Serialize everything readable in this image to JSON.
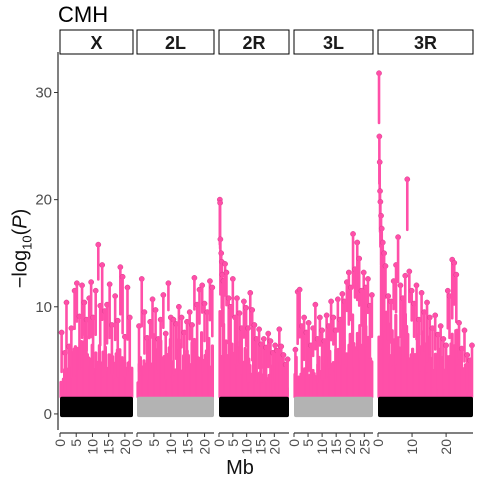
{
  "title": "CMH",
  "ylabel_text": "-log10(P)",
  "xlabel": "Mb",
  "colors": {
    "significant": "#FF4FA8",
    "significant_outline": "#D83A8C",
    "background_odd": "#000000",
    "background_even": "#B3B3B3",
    "panel_border": "#000000"
  },
  "chart_data": {
    "type": "scatter",
    "title": "CMH",
    "xlabel": "Mb",
    "ylabel": "-log10(P)",
    "ylim": [
      -1.5,
      33.5
    ],
    "y_ticks": [
      0,
      10,
      20,
      30
    ],
    "grid": false,
    "panels": [
      {
        "name": "X",
        "xlim": [
          0,
          22.5
        ],
        "x_ticks": [
          0,
          5,
          10,
          15,
          20
        ],
        "background_color": "black",
        "points": [
          [
            0.5,
            7.6
          ],
          [
            1.5,
            5.7
          ],
          [
            2.0,
            10.4
          ],
          [
            2.8,
            6.3
          ],
          [
            3.5,
            8.0
          ],
          [
            4.5,
            11.5
          ],
          [
            5.2,
            12.2
          ],
          [
            6.0,
            9.1
          ],
          [
            6.8,
            12.0
          ],
          [
            7.5,
            10.4
          ],
          [
            8.2,
            8.8
          ],
          [
            9.0,
            10.8
          ],
          [
            9.6,
            12.3
          ],
          [
            10.2,
            9.0
          ],
          [
            11.0,
            11.5
          ],
          [
            11.8,
            15.8
          ],
          [
            12.4,
            10.1
          ],
          [
            13.0,
            13.9
          ],
          [
            13.8,
            9.6
          ],
          [
            14.5,
            10.2
          ],
          [
            15.3,
            12.1
          ],
          [
            16.0,
            8.3
          ],
          [
            17.0,
            11.0
          ],
          [
            17.8,
            8.7
          ],
          [
            18.6,
            13.7
          ],
          [
            19.3,
            12.8
          ],
          [
            20.0,
            7.2
          ],
          [
            20.8,
            11.8
          ],
          [
            21.5,
            9.0
          ]
        ],
        "peaks": [
          [
            0.0,
            6.0
          ],
          [
            1.0,
            3.8
          ],
          [
            2.0,
            6.5
          ],
          [
            3.0,
            4.5
          ],
          [
            4.0,
            7.5
          ],
          [
            5.0,
            6.0
          ],
          [
            6.0,
            8.5
          ],
          [
            7.0,
            5.8
          ],
          [
            8.0,
            9.0
          ],
          [
            9.0,
            6.5
          ],
          [
            10.0,
            7.8
          ],
          [
            11.0,
            6.0
          ],
          [
            12.0,
            9.5
          ],
          [
            13.0,
            5.5
          ],
          [
            14.0,
            7.0
          ],
          [
            15.0,
            5.5
          ],
          [
            16.0,
            6.8
          ],
          [
            17.0,
            5.0
          ],
          [
            18.0,
            7.5
          ],
          [
            19.0,
            6.2
          ],
          [
            20.0,
            5.5
          ],
          [
            21.0,
            6.5
          ],
          [
            22.0,
            4.5
          ]
        ]
      },
      {
        "name": "2L",
        "xlim": [
          0,
          22.8
        ],
        "x_ticks": [
          0,
          5,
          10,
          15,
          20
        ],
        "background_color": "gray",
        "points": [
          [
            0.6,
            8.2
          ],
          [
            1.4,
            12.6
          ],
          [
            2.2,
            9.5
          ],
          [
            3.0,
            7.1
          ],
          [
            3.9,
            8.6
          ],
          [
            4.6,
            10.7
          ],
          [
            5.5,
            9.7
          ],
          [
            6.3,
            7.0
          ],
          [
            7.0,
            8.8
          ],
          [
            7.8,
            11.1
          ],
          [
            8.5,
            7.5
          ],
          [
            9.3,
            12.2
          ],
          [
            10.0,
            9.0
          ],
          [
            10.8,
            8.8
          ],
          [
            11.6,
            8.4
          ],
          [
            12.4,
            10.0
          ],
          [
            13.2,
            9.0
          ],
          [
            14.0,
            7.6
          ],
          [
            14.8,
            8.6
          ],
          [
            15.6,
            9.5
          ],
          [
            16.3,
            8.3
          ],
          [
            17.0,
            12.7
          ],
          [
            17.8,
            10.2
          ],
          [
            18.5,
            11.6
          ],
          [
            19.3,
            12.0
          ],
          [
            20.0,
            10.3
          ],
          [
            20.8,
            9.5
          ],
          [
            21.6,
            12.4
          ],
          [
            22.3,
            11.8
          ]
        ],
        "peaks": [
          [
            0.0,
            4.0
          ],
          [
            1.0,
            6.5
          ],
          [
            2.0,
            5.0
          ],
          [
            3.0,
            8.0
          ],
          [
            4.0,
            6.5
          ],
          [
            5.0,
            8.0
          ],
          [
            6.0,
            6.0
          ],
          [
            7.0,
            7.5
          ],
          [
            8.0,
            5.5
          ],
          [
            9.0,
            6.5
          ],
          [
            10.0,
            7.0
          ],
          [
            11.0,
            5.0
          ],
          [
            12.0,
            8.0
          ],
          [
            13.0,
            6.0
          ],
          [
            14.0,
            5.5
          ],
          [
            15.0,
            7.0
          ],
          [
            16.0,
            6.0
          ],
          [
            17.0,
            8.5
          ],
          [
            18.0,
            7.0
          ],
          [
            19.0,
            8.0
          ],
          [
            20.0,
            6.5
          ],
          [
            21.0,
            7.5
          ],
          [
            22.0,
            8.0
          ]
        ]
      },
      {
        "name": "2R",
        "xlim": [
          0,
          25.3
        ],
        "x_ticks": [
          0,
          5,
          10,
          15,
          20
        ],
        "background_color": "black",
        "points": [
          [
            0.3,
            20.0
          ],
          [
            0.4,
            19.7
          ],
          [
            0.5,
            16.3
          ],
          [
            0.8,
            15.0
          ],
          [
            1.0,
            14.2
          ],
          [
            1.2,
            13.0
          ],
          [
            1.6,
            12.4
          ],
          [
            2.2,
            14.0
          ],
          [
            2.7,
            13.2
          ],
          [
            3.5,
            10.8
          ],
          [
            4.2,
            10.0
          ],
          [
            5.0,
            12.6
          ],
          [
            5.8,
            9.0
          ],
          [
            6.5,
            10.8
          ],
          [
            7.4,
            9.4
          ],
          [
            8.2,
            8.0
          ],
          [
            9.0,
            10.5
          ],
          [
            9.8,
            9.9
          ],
          [
            10.5,
            8.0
          ],
          [
            11.3,
            11.3
          ],
          [
            12.0,
            9.7
          ],
          [
            12.8,
            8.3
          ],
          [
            13.6,
            7.0
          ],
          [
            14.5,
            7.9
          ],
          [
            15.3,
            6.5
          ],
          [
            16.2,
            7.0
          ],
          [
            17.0,
            6.2
          ],
          [
            17.8,
            7.5
          ],
          [
            18.6,
            6.8
          ],
          [
            19.5,
            5.7
          ],
          [
            20.3,
            6.4
          ],
          [
            21.0,
            5.9
          ],
          [
            21.8,
            7.9
          ],
          [
            22.5,
            6.3
          ],
          [
            23.3,
            5.5
          ],
          [
            24.1,
            4.6
          ],
          [
            24.8,
            5.1
          ]
        ],
        "peaks": [
          [
            0.0,
            12.0
          ],
          [
            1.0,
            10.0
          ],
          [
            2.0,
            11.0
          ],
          [
            3.0,
            9.5
          ],
          [
            4.0,
            8.0
          ],
          [
            5.0,
            9.0
          ],
          [
            6.0,
            7.5
          ],
          [
            7.0,
            8.0
          ],
          [
            8.0,
            6.5
          ],
          [
            9.0,
            7.0
          ],
          [
            10.0,
            6.0
          ],
          [
            11.0,
            6.5
          ],
          [
            12.0,
            5.5
          ],
          [
            13.0,
            6.0
          ],
          [
            14.0,
            4.8
          ],
          [
            15.0,
            5.5
          ],
          [
            16.0,
            4.5
          ],
          [
            17.0,
            5.0
          ],
          [
            18.0,
            4.0
          ],
          [
            19.0,
            4.8
          ],
          [
            20.0,
            3.8
          ],
          [
            21.0,
            4.5
          ],
          [
            22.0,
            5.0
          ],
          [
            23.0,
            4.0
          ],
          [
            24.0,
            3.5
          ],
          [
            25.0,
            3.5
          ]
        ]
      },
      {
        "name": "3L",
        "xlim": [
          0,
          28.1
        ],
        "x_ticks": [
          0,
          5,
          10,
          15,
          20,
          25
        ],
        "background_color": "gray",
        "points": [
          [
            0.5,
            6.0
          ],
          [
            1.3,
            11.4
          ],
          [
            2.0,
            11.6
          ],
          [
            2.8,
            8.2
          ],
          [
            3.6,
            9.0
          ],
          [
            4.4,
            7.6
          ],
          [
            5.2,
            8.5
          ],
          [
            6.0,
            6.4
          ],
          [
            6.8,
            8.0
          ],
          [
            7.6,
            10.2
          ],
          [
            8.4,
            7.0
          ],
          [
            9.2,
            9.0
          ],
          [
            10.0,
            7.8
          ],
          [
            10.8,
            6.8
          ],
          [
            11.6,
            9.2
          ],
          [
            12.4,
            8.2
          ],
          [
            13.2,
            10.5
          ],
          [
            14.0,
            9.0
          ],
          [
            14.8,
            7.8
          ],
          [
            15.6,
            10.7
          ],
          [
            16.4,
            8.8
          ],
          [
            17.2,
            11.2
          ],
          [
            18.0,
            10.5
          ],
          [
            18.8,
            12.3
          ],
          [
            19.5,
            13.2
          ],
          [
            20.2,
            11.8
          ],
          [
            21.0,
            16.8
          ],
          [
            21.7,
            13.5
          ],
          [
            22.5,
            16.0
          ],
          [
            23.2,
            14.5
          ],
          [
            24.0,
            11.5
          ],
          [
            24.8,
            13.2
          ],
          [
            25.5,
            11.8
          ],
          [
            26.3,
            12.6
          ],
          [
            27.0,
            10.1
          ],
          [
            27.7,
            11.1
          ]
        ],
        "peaks": [
          [
            0.0,
            3.5
          ],
          [
            1.0,
            6.0
          ],
          [
            2.0,
            5.5
          ],
          [
            3.0,
            4.5
          ],
          [
            4.0,
            5.0
          ],
          [
            5.0,
            4.5
          ],
          [
            6.0,
            5.0
          ],
          [
            7.0,
            5.5
          ],
          [
            8.0,
            4.5
          ],
          [
            9.0,
            5.8
          ],
          [
            10.0,
            5.0
          ],
          [
            11.0,
            5.5
          ],
          [
            12.0,
            6.0
          ],
          [
            13.0,
            6.5
          ],
          [
            14.0,
            6.0
          ],
          [
            15.0,
            7.0
          ],
          [
            16.0,
            6.5
          ],
          [
            17.0,
            7.5
          ],
          [
            18.0,
            7.0
          ],
          [
            19.0,
            8.5
          ],
          [
            20.0,
            8.0
          ],
          [
            21.0,
            9.5
          ],
          [
            22.0,
            9.0
          ],
          [
            23.0,
            9.5
          ],
          [
            24.0,
            8.5
          ],
          [
            25.0,
            9.0
          ],
          [
            26.0,
            8.0
          ],
          [
            27.0,
            7.0
          ],
          [
            28.0,
            6.5
          ]
        ]
      },
      {
        "name": "3R",
        "xlim": [
          0,
          27.9
        ],
        "x_ticks": [
          0,
          10,
          20
        ],
        "background_color": "black",
        "points": [
          [
            0.3,
            31.8
          ],
          [
            0.4,
            25.9
          ],
          [
            0.5,
            23.5
          ],
          [
            0.6,
            20.8
          ],
          [
            0.7,
            19.8
          ],
          [
            0.9,
            18.5
          ],
          [
            1.1,
            17.3
          ],
          [
            1.4,
            16.0
          ],
          [
            1.8,
            15.0
          ],
          [
            2.2,
            13.8
          ],
          [
            3.0,
            11.0
          ],
          [
            3.8,
            10.5
          ],
          [
            4.6,
            12.4
          ],
          [
            5.3,
            13.9
          ],
          [
            5.9,
            16.5
          ],
          [
            6.6,
            12.0
          ],
          [
            7.3,
            10.8
          ],
          [
            8.0,
            12.9
          ],
          [
            8.6,
            21.9
          ],
          [
            9.2,
            13.3
          ],
          [
            9.9,
            11.5
          ],
          [
            10.6,
            10.3
          ],
          [
            11.3,
            12.0
          ],
          [
            12.0,
            8.8
          ],
          [
            12.8,
            11.3
          ],
          [
            13.6,
            9.5
          ],
          [
            14.4,
            10.4
          ],
          [
            15.2,
            9.0
          ],
          [
            16.0,
            8.0
          ],
          [
            16.8,
            9.2
          ],
          [
            17.6,
            7.4
          ],
          [
            18.4,
            8.2
          ],
          [
            19.2,
            7.0
          ],
          [
            20.0,
            6.4
          ],
          [
            20.5,
            11.5
          ],
          [
            21.0,
            11.0
          ],
          [
            21.8,
            14.4
          ],
          [
            22.4,
            14.1
          ],
          [
            23.0,
            13.0
          ],
          [
            23.8,
            8.5
          ],
          [
            24.6,
            6.1
          ],
          [
            25.4,
            7.8
          ],
          [
            26.2,
            5.5
          ],
          [
            27.0,
            5.0
          ],
          [
            27.6,
            6.4
          ]
        ],
        "peaks": [
          [
            0.0,
            13.0
          ],
          [
            1.0,
            14.0
          ],
          [
            2.0,
            11.0
          ],
          [
            3.0,
            8.5
          ],
          [
            4.0,
            9.0
          ],
          [
            5.0,
            10.0
          ],
          [
            6.0,
            9.0
          ],
          [
            7.0,
            8.5
          ],
          [
            8.0,
            10.0
          ],
          [
            9.0,
            9.0
          ],
          [
            10.0,
            8.0
          ],
          [
            11.0,
            8.5
          ],
          [
            12.0,
            7.5
          ],
          [
            13.0,
            8.0
          ],
          [
            14.0,
            7.0
          ],
          [
            15.0,
            7.5
          ],
          [
            16.0,
            6.5
          ],
          [
            17.0,
            6.5
          ],
          [
            18.0,
            6.0
          ],
          [
            19.0,
            5.5
          ],
          [
            20.0,
            5.0
          ],
          [
            21.0,
            9.0
          ],
          [
            22.0,
            10.0
          ],
          [
            23.0,
            8.5
          ],
          [
            24.0,
            6.0
          ],
          [
            25.0,
            6.5
          ],
          [
            26.0,
            5.0
          ],
          [
            27.0,
            4.5
          ],
          [
            27.9,
            5.0
          ]
        ]
      }
    ]
  }
}
